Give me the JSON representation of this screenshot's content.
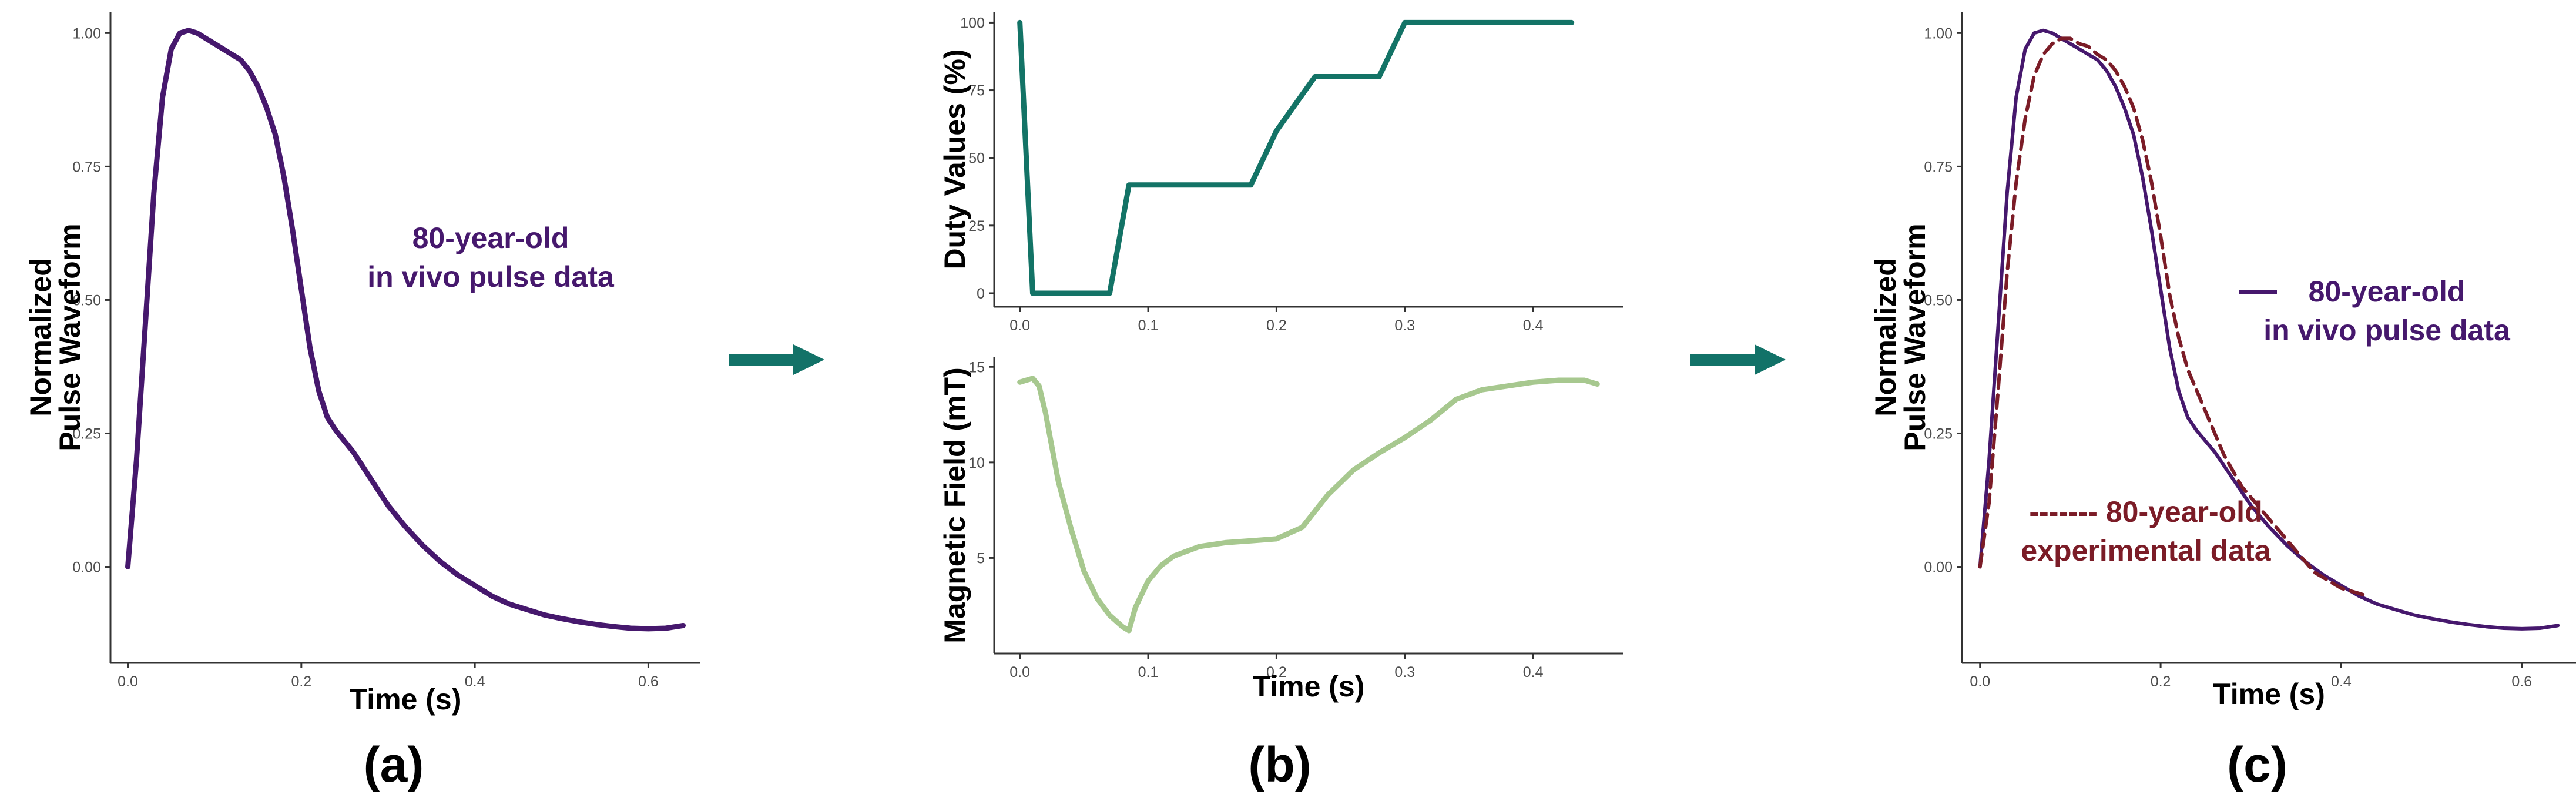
{
  "chart_data": [
    {
      "id": "a",
      "type": "line",
      "panel_label": "(a)",
      "xlabel": "Time (s)",
      "ylabel": [
        "Normalized",
        "Pulse Waveform"
      ],
      "xlim": [
        -0.02,
        0.66
      ],
      "ylim": [
        -0.18,
        1.04
      ],
      "x_ticks": [
        0.0,
        0.2,
        0.4,
        0.6
      ],
      "x_tick_labels": [
        "0.0",
        "0.2",
        "0.4",
        "0.6"
      ],
      "y_ticks": [
        0.0,
        0.25,
        0.5,
        0.75,
        1.0
      ],
      "y_tick_labels": [
        "0.00",
        "0.25",
        "0.50",
        "0.75",
        "1.00"
      ],
      "grid": false,
      "annotations": [
        {
          "lines": [
            "80-year-old",
            "in vivo pulse data"
          ],
          "color": "#46186d"
        }
      ],
      "series": [
        {
          "name": "80-year-old in vivo pulse data",
          "color": "#46186d",
          "style": "solid",
          "x": [
            0.0,
            0.01,
            0.02,
            0.03,
            0.04,
            0.05,
            0.06,
            0.07,
            0.08,
            0.09,
            0.1,
            0.11,
            0.12,
            0.13,
            0.14,
            0.15,
            0.16,
            0.17,
            0.18,
            0.19,
            0.2,
            0.21,
            0.22,
            0.23,
            0.24,
            0.25,
            0.26,
            0.27,
            0.28,
            0.29,
            0.3,
            0.32,
            0.34,
            0.36,
            0.38,
            0.4,
            0.42,
            0.44,
            0.46,
            0.48,
            0.5,
            0.52,
            0.54,
            0.56,
            0.58,
            0.6,
            0.62,
            0.64
          ],
          "y": [
            0.0,
            0.2,
            0.45,
            0.7,
            0.88,
            0.97,
            1.0,
            1.005,
            1.0,
            0.99,
            0.98,
            0.97,
            0.96,
            0.95,
            0.93,
            0.9,
            0.86,
            0.81,
            0.73,
            0.63,
            0.52,
            0.41,
            0.33,
            0.28,
            0.255,
            0.235,
            0.215,
            0.19,
            0.165,
            0.14,
            0.115,
            0.075,
            0.04,
            0.01,
            -0.015,
            -0.035,
            -0.055,
            -0.07,
            -0.08,
            -0.09,
            -0.097,
            -0.103,
            -0.108,
            -0.112,
            -0.115,
            -0.116,
            -0.115,
            -0.11
          ]
        }
      ]
    },
    {
      "id": "b-top",
      "type": "line",
      "panel_label": "(b)",
      "xlabel": "",
      "ylabel": [
        "Duty Values (%)"
      ],
      "xlim": [
        -0.02,
        0.47
      ],
      "ylim": [
        -5,
        104
      ],
      "x_ticks": [
        0.0,
        0.1,
        0.2,
        0.3,
        0.4
      ],
      "x_tick_labels": [
        "0.0",
        "0.1",
        "0.2",
        "0.3",
        "0.4"
      ],
      "y_ticks": [
        0,
        25,
        50,
        75,
        100
      ],
      "y_tick_labels": [
        "0",
        "25",
        "50",
        "75",
        "100"
      ],
      "grid": false,
      "series": [
        {
          "name": "Duty Values",
          "color": "#137366",
          "style": "solid",
          "x": [
            0.0,
            0.01,
            0.07,
            0.085,
            0.18,
            0.2,
            0.23,
            0.28,
            0.3,
            0.43
          ],
          "y": [
            100,
            0,
            0,
            40,
            40,
            60,
            80,
            80,
            100,
            100
          ]
        }
      ]
    },
    {
      "id": "b-bottom",
      "type": "line",
      "panel_label": "",
      "xlabel": "Time (s)",
      "ylabel": [
        "Magnetic Field (mT)"
      ],
      "xlim": [
        -0.02,
        0.47
      ],
      "ylim": [
        0,
        15.5
      ],
      "x_ticks": [
        0.0,
        0.1,
        0.2,
        0.3,
        0.4
      ],
      "x_tick_labels": [
        "0.0",
        "0.1",
        "0.2",
        "0.3",
        "0.4"
      ],
      "y_ticks": [
        5,
        10,
        15
      ],
      "y_tick_labels": [
        "5",
        "10",
        "15"
      ],
      "grid": false,
      "series": [
        {
          "name": "Magnetic Field",
          "color": "#a7c88f",
          "style": "solid",
          "x": [
            0.0,
            0.005,
            0.01,
            0.015,
            0.02,
            0.03,
            0.04,
            0.05,
            0.06,
            0.07,
            0.08,
            0.085,
            0.09,
            0.1,
            0.11,
            0.12,
            0.14,
            0.16,
            0.18,
            0.2,
            0.22,
            0.24,
            0.26,
            0.28,
            0.3,
            0.32,
            0.34,
            0.36,
            0.38,
            0.4,
            0.42,
            0.44,
            0.45
          ],
          "y": [
            14.2,
            14.3,
            14.4,
            14.0,
            12.6,
            9.0,
            6.5,
            4.3,
            2.9,
            2.0,
            1.4,
            1.2,
            2.4,
            3.8,
            4.6,
            5.1,
            5.6,
            5.8,
            5.9,
            6.0,
            6.6,
            8.3,
            9.6,
            10.5,
            11.3,
            12.2,
            13.3,
            13.8,
            14.0,
            14.2,
            14.3,
            14.3,
            14.1
          ]
        }
      ]
    },
    {
      "id": "c",
      "type": "line",
      "panel_label": "(c)",
      "xlabel": "Time (s)",
      "ylabel": [
        "Normalized",
        "Pulse Waveform"
      ],
      "xlim": [
        -0.02,
        0.66
      ],
      "ylim": [
        -0.18,
        1.04
      ],
      "x_ticks": [
        0.0,
        0.2,
        0.4,
        0.6
      ],
      "x_tick_labels": [
        "0.0",
        "0.2",
        "0.4",
        "0.6"
      ],
      "y_ticks": [
        0.0,
        0.25,
        0.5,
        0.75,
        1.0
      ],
      "y_tick_labels": [
        "0.00",
        "0.25",
        "0.50",
        "0.75",
        "1.00"
      ],
      "grid": false,
      "legend": [
        {
          "marker": "solid",
          "lines": [
            "80-year-old",
            "in vivo pulse data"
          ],
          "color": "#46186d"
        },
        {
          "marker": "-------",
          "lines": [
            "80-year-old",
            "experimental data"
          ],
          "color": "#7b1c27"
        }
      ],
      "series": [
        {
          "name": "80-year-old in vivo pulse data",
          "color": "#46186d",
          "style": "solid",
          "x": [
            0.0,
            0.01,
            0.02,
            0.03,
            0.04,
            0.05,
            0.06,
            0.07,
            0.08,
            0.09,
            0.1,
            0.11,
            0.12,
            0.13,
            0.14,
            0.15,
            0.16,
            0.17,
            0.18,
            0.19,
            0.2,
            0.21,
            0.22,
            0.23,
            0.24,
            0.25,
            0.26,
            0.27,
            0.28,
            0.29,
            0.3,
            0.32,
            0.34,
            0.36,
            0.38,
            0.4,
            0.42,
            0.44,
            0.46,
            0.48,
            0.5,
            0.52,
            0.54,
            0.56,
            0.58,
            0.6,
            0.62,
            0.64
          ],
          "y": [
            0.0,
            0.2,
            0.45,
            0.7,
            0.88,
            0.97,
            1.0,
            1.005,
            1.0,
            0.99,
            0.98,
            0.97,
            0.96,
            0.95,
            0.93,
            0.9,
            0.86,
            0.81,
            0.73,
            0.63,
            0.52,
            0.41,
            0.33,
            0.28,
            0.255,
            0.235,
            0.215,
            0.19,
            0.165,
            0.14,
            0.115,
            0.075,
            0.04,
            0.01,
            -0.015,
            -0.035,
            -0.055,
            -0.07,
            -0.08,
            -0.09,
            -0.097,
            -0.103,
            -0.108,
            -0.112,
            -0.115,
            -0.116,
            -0.115,
            -0.11
          ]
        },
        {
          "name": "80-year-old experimental data",
          "color": "#7b1c27",
          "style": "dashed",
          "x": [
            0.0,
            0.01,
            0.02,
            0.03,
            0.04,
            0.05,
            0.06,
            0.07,
            0.08,
            0.09,
            0.1,
            0.11,
            0.12,
            0.13,
            0.14,
            0.15,
            0.16,
            0.17,
            0.18,
            0.19,
            0.2,
            0.21,
            0.22,
            0.23,
            0.24,
            0.25,
            0.26,
            0.27,
            0.28,
            0.29,
            0.3,
            0.31,
            0.32,
            0.33,
            0.34,
            0.35,
            0.36,
            0.37,
            0.38,
            0.39,
            0.4,
            0.41,
            0.42,
            0.43
          ],
          "y": [
            0.0,
            0.12,
            0.33,
            0.55,
            0.72,
            0.84,
            0.92,
            0.96,
            0.98,
            0.99,
            0.99,
            0.98,
            0.975,
            0.96,
            0.95,
            0.93,
            0.9,
            0.86,
            0.8,
            0.72,
            0.62,
            0.51,
            0.43,
            0.37,
            0.33,
            0.29,
            0.25,
            0.21,
            0.18,
            0.15,
            0.13,
            0.11,
            0.09,
            0.07,
            0.05,
            0.03,
            0.01,
            -0.01,
            -0.02,
            -0.03,
            -0.04,
            -0.045,
            -0.05,
            -0.055
          ]
        }
      ]
    }
  ],
  "arrows": [
    {
      "color": "#127268"
    },
    {
      "color": "#127268"
    }
  ]
}
